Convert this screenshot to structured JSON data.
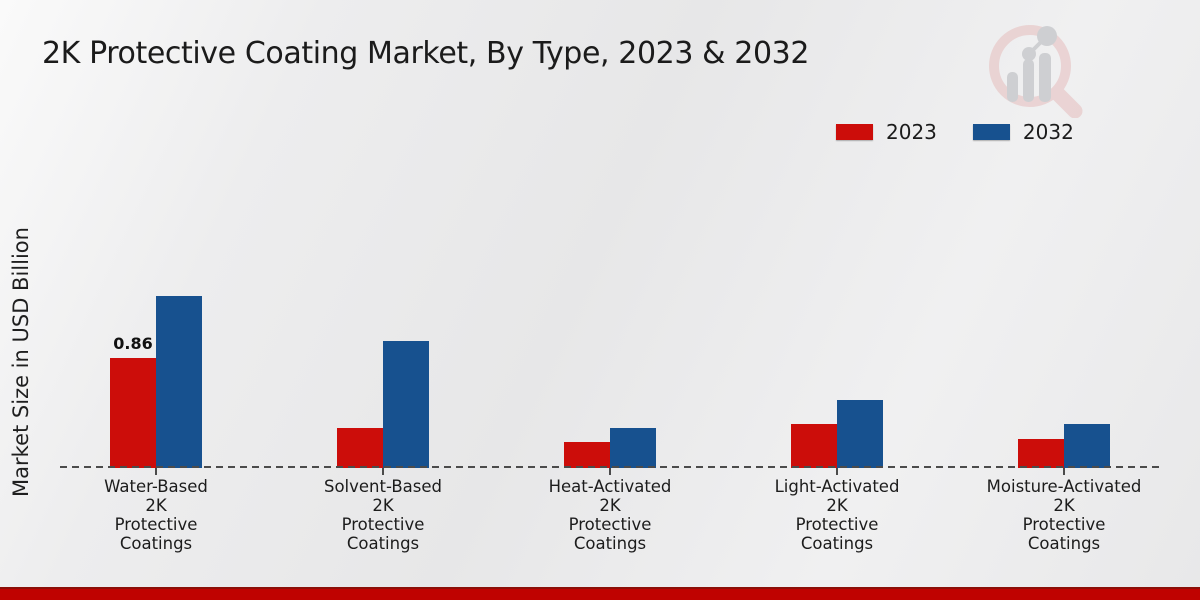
{
  "chart_data": {
    "type": "bar",
    "title": "2K Protective Coating Market, By Type, 2023 & 2032",
    "ylabel": "Market Size in USD Billion",
    "categories": [
      "Water-Based 2K Protective Coatings",
      "Solvent-Based 2K Protective Coatings",
      "Heat-Activated 2K Protective Coatings",
      "Light-Activated 2K Protective Coatings",
      "Moisture-Activated 2K Protective Coatings"
    ],
    "category_label_lines": [
      [
        "Water-Based",
        "2K",
        "Protective",
        "Coatings"
      ],
      [
        "Solvent-Based",
        "2K",
        "Protective",
        "Coatings"
      ],
      [
        "Heat-Activated",
        "2K",
        "Protective",
        "Coatings"
      ],
      [
        "Light-Activated",
        "2K",
        "Protective",
        "Coatings"
      ],
      [
        "Moisture-Activated",
        "2K",
        "Protective",
        "Coatings"
      ]
    ],
    "series": [
      {
        "name": "2023",
        "color": "#cc0d0a",
        "values": [
          0.86,
          0.31,
          0.2,
          0.34,
          0.23
        ]
      },
      {
        "name": "2032",
        "color": "#17518f",
        "values": [
          1.34,
          0.99,
          0.31,
          0.53,
          0.34
        ]
      }
    ],
    "ylim": [
      0,
      1.5
    ],
    "grid": false,
    "baseline_style": "dashed",
    "legend_position": "top-right",
    "data_labels": [
      {
        "series": "2023",
        "category_index": 0,
        "text": "0.86"
      }
    ]
  },
  "annotation": {
    "value": "0.86"
  },
  "icons": {
    "watermark": "magnifier-bar-chart-logo"
  },
  "footer": {
    "accent_color": "#bf0200"
  }
}
